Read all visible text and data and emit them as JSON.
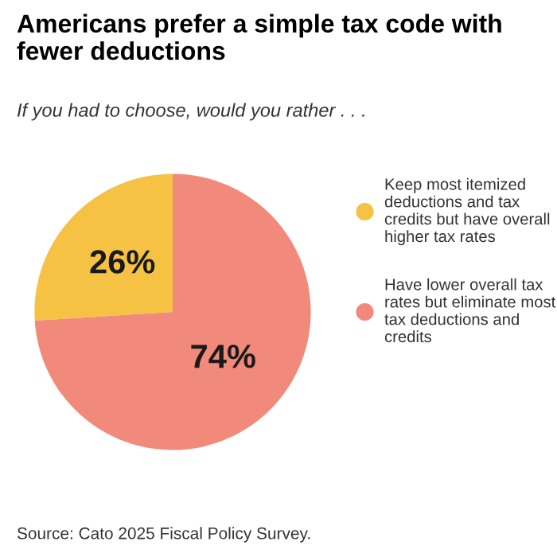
{
  "chart_data": {
    "type": "pie",
    "title": "Americans prefer a simple tax code with fewer deductions",
    "subtitle": "If you had to choose, would you rather . . .",
    "categories": [
      "Keep most itemized deductions and tax credits but have overall higher tax rates",
      "Have lower overall tax rates but eliminate most tax deductions and credits"
    ],
    "values": [
      26,
      74
    ],
    "colors": [
      "#f6c244",
      "#f28a7b"
    ],
    "value_labels": [
      "26%",
      "74%"
    ],
    "legend": "right",
    "annotations": [
      "Source: Cato 2025 Fiscal Policy Survey."
    ]
  }
}
